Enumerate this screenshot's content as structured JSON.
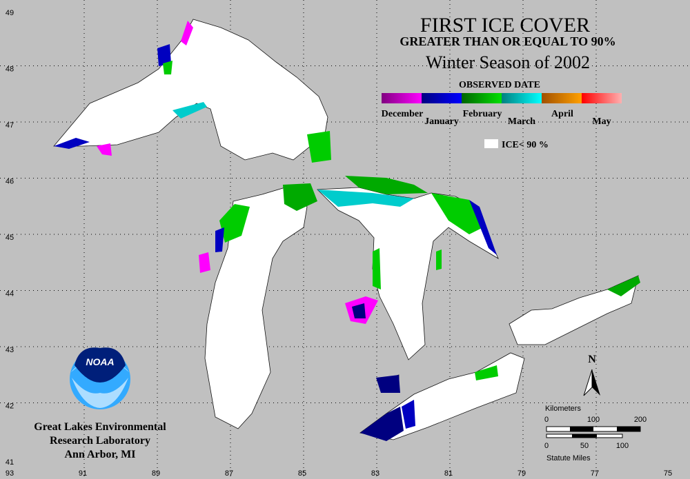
{
  "title": "FIRST ICE COVER",
  "subtitle": "GREATER THAN OR EQUAL TO 90%",
  "season": "Winter Season of 2002",
  "legend": {
    "title": "OBSERVED DATE",
    "months": [
      "December",
      "January",
      "February",
      "March",
      "April",
      "May"
    ],
    "no_ice": "ICE< 90 %"
  },
  "grid": {
    "longitudes": [
      "93",
      "91",
      "89",
      "87",
      "85",
      "83",
      "81",
      "79",
      "77",
      "75"
    ],
    "latitudes": [
      "49",
      "48",
      "47",
      "46",
      "45",
      "44",
      "43",
      "42",
      "41"
    ]
  },
  "north": "N",
  "scale": {
    "km_label": "Kilometers",
    "km_ticks": [
      "0",
      "100",
      "200"
    ],
    "mi_ticks": [
      "0",
      "50",
      "100"
    ],
    "mi_label": "Statute Miles"
  },
  "logo": "NOAA",
  "credit": [
    "Great Lakes Environmental",
    "Research Laboratory",
    "Ann Arbor, MI"
  ]
}
